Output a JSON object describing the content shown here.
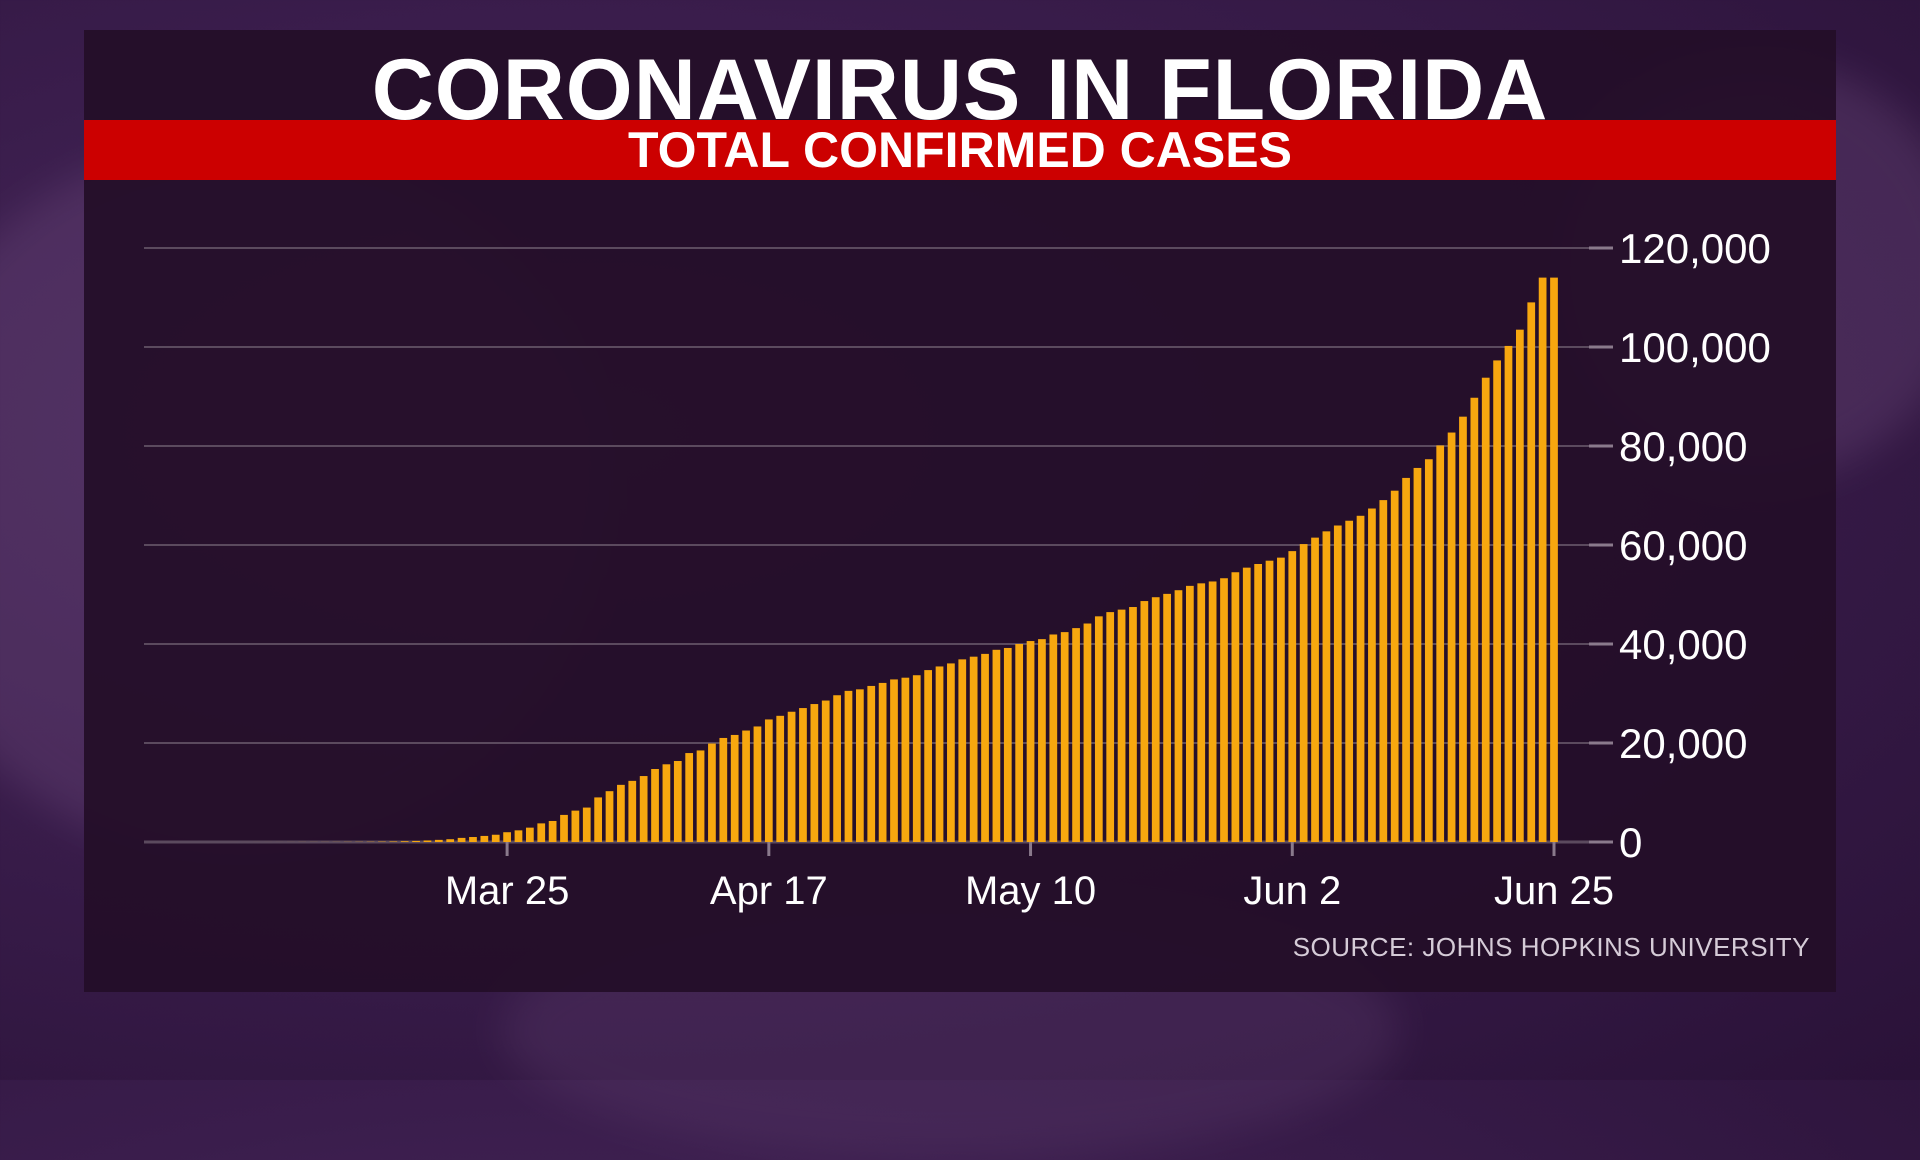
{
  "title": "CORONAVIRUS IN FLORIDA",
  "subtitle": "TOTAL CONFIRMED CASES",
  "source": "SOURCE: JOHNS HOPKINS UNIVERSITY",
  "colors": {
    "bar": "#f7a70f",
    "banner": "#cc0000",
    "panel": "#230e28",
    "grid": "#5b4a5e",
    "text": "#ffffff"
  },
  "chart_data": {
    "type": "bar",
    "title": "TOTAL CONFIRMED CASES",
    "xlabel": "",
    "ylabel": "",
    "ylim": [
      0,
      120000
    ],
    "yticks": [
      0,
      20000,
      40000,
      60000,
      80000,
      100000,
      120000
    ],
    "ytick_labels": [
      "0",
      "20,000",
      "40,000",
      "60,000",
      "80,000",
      "100,000",
      "120,000"
    ],
    "y_axis_position": "right",
    "grid": true,
    "xticks": [
      {
        "date": "2020-03-25",
        "label": "Mar 25"
      },
      {
        "date": "2020-04-17",
        "label": "Apr 17"
      },
      {
        "date": "2020-05-10",
        "label": "May 10"
      },
      {
        "date": "2020-06-02",
        "label": "Jun 2"
      },
      {
        "date": "2020-06-25",
        "label": "Jun 25"
      }
    ],
    "x": [
      "2020-03-01",
      "2020-03-02",
      "2020-03-03",
      "2020-03-04",
      "2020-03-05",
      "2020-03-06",
      "2020-03-07",
      "2020-03-08",
      "2020-03-09",
      "2020-03-10",
      "2020-03-11",
      "2020-03-12",
      "2020-03-13",
      "2020-03-14",
      "2020-03-15",
      "2020-03-16",
      "2020-03-17",
      "2020-03-18",
      "2020-03-19",
      "2020-03-20",
      "2020-03-21",
      "2020-03-22",
      "2020-03-23",
      "2020-03-24",
      "2020-03-25",
      "2020-03-26",
      "2020-03-27",
      "2020-03-28",
      "2020-03-29",
      "2020-03-30",
      "2020-03-31",
      "2020-04-01",
      "2020-04-02",
      "2020-04-03",
      "2020-04-04",
      "2020-04-05",
      "2020-04-06",
      "2020-04-07",
      "2020-04-08",
      "2020-04-09",
      "2020-04-10",
      "2020-04-11",
      "2020-04-12",
      "2020-04-13",
      "2020-04-14",
      "2020-04-15",
      "2020-04-16",
      "2020-04-17",
      "2020-04-18",
      "2020-04-19",
      "2020-04-20",
      "2020-04-21",
      "2020-04-22",
      "2020-04-23",
      "2020-04-24",
      "2020-04-25",
      "2020-04-26",
      "2020-04-27",
      "2020-04-28",
      "2020-04-29",
      "2020-04-30",
      "2020-05-01",
      "2020-05-02",
      "2020-05-03",
      "2020-05-04",
      "2020-05-05",
      "2020-05-06",
      "2020-05-07",
      "2020-05-08",
      "2020-05-09",
      "2020-05-10",
      "2020-05-11",
      "2020-05-12",
      "2020-05-13",
      "2020-05-14",
      "2020-05-15",
      "2020-05-16",
      "2020-05-17",
      "2020-05-18",
      "2020-05-19",
      "2020-05-20",
      "2020-05-21",
      "2020-05-22",
      "2020-05-23",
      "2020-05-24",
      "2020-05-25",
      "2020-05-26",
      "2020-05-27",
      "2020-05-28",
      "2020-05-29",
      "2020-05-30",
      "2020-05-31",
      "2020-06-01",
      "2020-06-02",
      "2020-06-03",
      "2020-06-04",
      "2020-06-05",
      "2020-06-06",
      "2020-06-07",
      "2020-06-08",
      "2020-06-09",
      "2020-06-10",
      "2020-06-11",
      "2020-06-12",
      "2020-06-13",
      "2020-06-14",
      "2020-06-15",
      "2020-06-16",
      "2020-06-17",
      "2020-06-18",
      "2020-06-19",
      "2020-06-20",
      "2020-06-21",
      "2020-06-22",
      "2020-06-23",
      "2020-06-24",
      "2020-06-25"
    ],
    "values": [
      2,
      2,
      3,
      3,
      4,
      7,
      12,
      13,
      15,
      18,
      28,
      35,
      50,
      76,
      100,
      155,
      216,
      314,
      432,
      563,
      830,
      1007,
      1227,
      1467,
      1977,
      2355,
      2900,
      3763,
      4246,
      5473,
      6338,
      6955,
      9008,
      10268,
      11545,
      12350,
      13324,
      14747,
      15698,
      16364,
      17968,
      18494,
      19895,
      21019,
      21628,
      22519,
      23340,
      24759,
      25492,
      26314,
      27059,
      27869,
      28576,
      29648,
      30533,
      30839,
      31528,
      32138,
      32846,
      33193,
      33690,
      34728,
      35463,
      36078,
      36897,
      37439,
      38002,
      38828,
      39199,
      40001,
      40596,
      40982,
      41923,
      42402,
      43210,
      44138,
      45588,
      46442,
      46944,
      47471,
      48675,
      49451,
      50127,
      50867,
      51746,
      52255,
      52634,
      53285,
      54497,
      55424,
      56163,
      56830,
      57447,
      58764,
      60183,
      61488,
      62758,
      63938,
      64904,
      65902,
      67371,
      69069,
      70971,
      73552,
      75568,
      77326,
      80109,
      82719,
      85926,
      89748,
      93797,
      97291,
      100217,
      103503,
      109014,
      114018,
      114018
    ]
  }
}
